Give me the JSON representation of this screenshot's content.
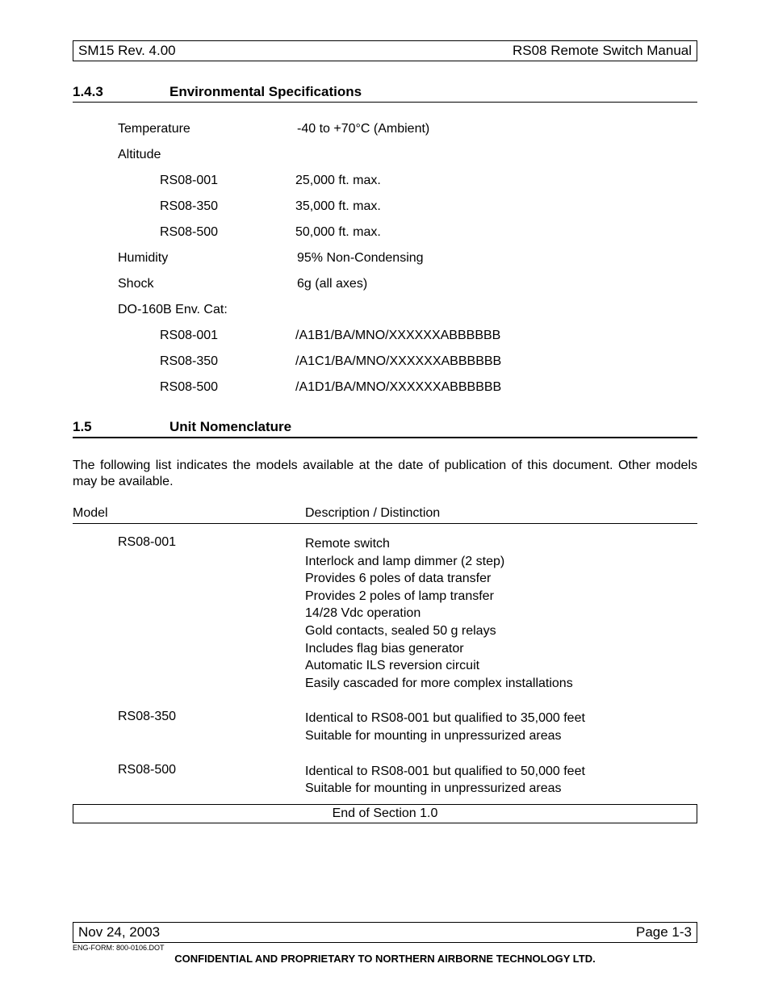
{
  "header": {
    "left": "SM15 Rev. 4.00",
    "right": "RS08 Remote Switch Manual"
  },
  "section1": {
    "number": "1.4.3",
    "title": "Environmental Specifications",
    "rows": [
      {
        "label": "Temperature",
        "value": "-40 to +70°C (Ambient)"
      },
      {
        "label": "Altitude",
        "value": ""
      },
      {
        "sub": "RS08-001",
        "value": "25,000 ft. max."
      },
      {
        "sub": "RS08-350",
        "value": "35,000 ft. max."
      },
      {
        "sub": "RS08-500",
        "value": "50,000 ft. max."
      },
      {
        "label": "Humidity",
        "value": "95% Non-Condensing"
      },
      {
        "label": "Shock",
        "value": "6g (all axes)"
      },
      {
        "label": "DO-160B Env. Cat:",
        "value": ""
      },
      {
        "sub": "RS08-001",
        "value": "/A1B1/BA/MNO/XXXXXXABBBBBB"
      },
      {
        "sub": "RS08-350",
        "value": "/A1C1/BA/MNO/XXXXXXABBBBBB"
      },
      {
        "sub": "RS08-500",
        "value": "/A1D1/BA/MNO/XXXXXXABBBBBB"
      }
    ]
  },
  "section2": {
    "number": "1.5",
    "title": "Unit Nomenclature",
    "intro": "The following list indicates the models available at the date of publication of this document.  Other models may be available.",
    "head_model": "Model",
    "head_desc": "Description / Distinction",
    "models": [
      {
        "name": "RS08-001",
        "desc": "Remote switch\nInterlock and lamp dimmer (2 step)\nProvides 6 poles of data transfer\nProvides 2 poles of lamp transfer\n14/28 Vdc operation\nGold contacts, sealed 50 g relays\nIncludes flag bias generator\nAutomatic ILS reversion circuit\nEasily cascaded for more complex installations"
      },
      {
        "name": "RS08-350",
        "desc": "Identical to RS08-001 but qualified to 35,000 feet\nSuitable for mounting in unpressurized areas"
      },
      {
        "name": "RS08-500",
        "desc": "Identical to RS08-001 but qualified to 50,000 feet\nSuitable for mounting in unpressurized areas"
      }
    ],
    "end": "End of Section 1.0"
  },
  "footer": {
    "left": "Nov 24, 2003",
    "right": "Page 1-3",
    "form": "ENG-FORM: 800-0106.DOT",
    "conf": "CONFIDENTIAL AND PROPRIETARY TO NORTHERN AIRBORNE TECHNOLOGY LTD."
  }
}
